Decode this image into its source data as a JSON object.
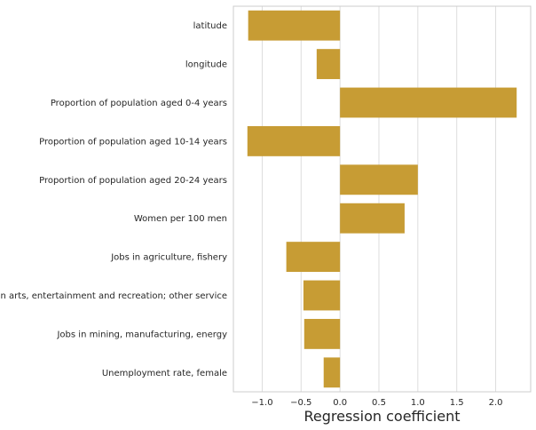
{
  "chart_data": {
    "type": "bar",
    "orientation": "horizontal",
    "categories": [
      "latitude",
      "longitude",
      "Proportion of population aged 0-4 years",
      "Proportion of population aged 10-14 years",
      "Proportion of population aged 20-24 years",
      "Women per 100 men",
      "Jobs in agriculture, fishery",
      "Jobs in arts, entertainment and recreation; other service",
      "Jobs in mining, manufacturing, energy",
      "Unemployment rate, female"
    ],
    "values": [
      -1.18,
      -0.3,
      2.27,
      -1.19,
      1.0,
      0.83,
      -0.69,
      -0.47,
      -0.46,
      -0.21
    ],
    "xlabel": "Regression coefficient",
    "ylabel": "",
    "xlim": [
      -1.37,
      2.45
    ],
    "xticks": [
      -1.0,
      -0.5,
      0.0,
      0.5,
      1.0,
      1.5,
      2.0
    ],
    "xtick_labels": [
      "−1.0",
      "−0.5",
      "0.0",
      "0.5",
      "1.0",
      "1.5",
      "2.0"
    ],
    "bar_color": "#c79c34",
    "grid": "vertical",
    "grid_color": "#dddddd",
    "spine_color": "#cccccc"
  }
}
